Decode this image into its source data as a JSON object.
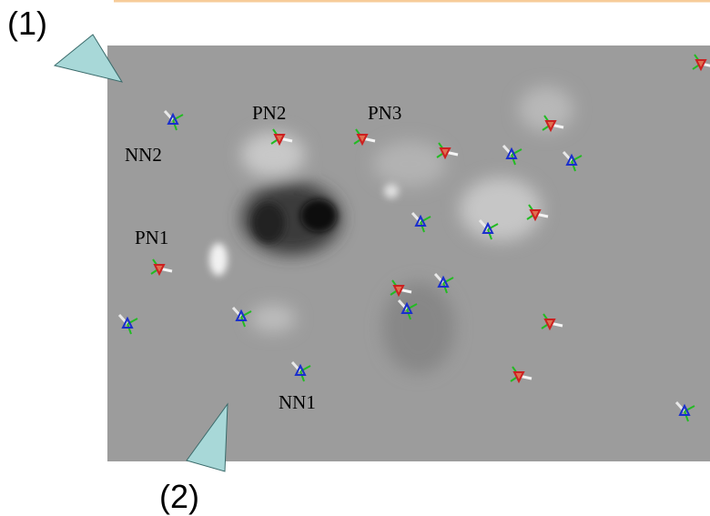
{
  "callouts": [
    {
      "label": "(1)"
    },
    {
      "label": "(2)"
    }
  ],
  "features": [
    {
      "label": "PN1"
    },
    {
      "label": "PN2"
    },
    {
      "label": "PN3"
    },
    {
      "label": "NN1"
    },
    {
      "label": "NN2"
    }
  ]
}
